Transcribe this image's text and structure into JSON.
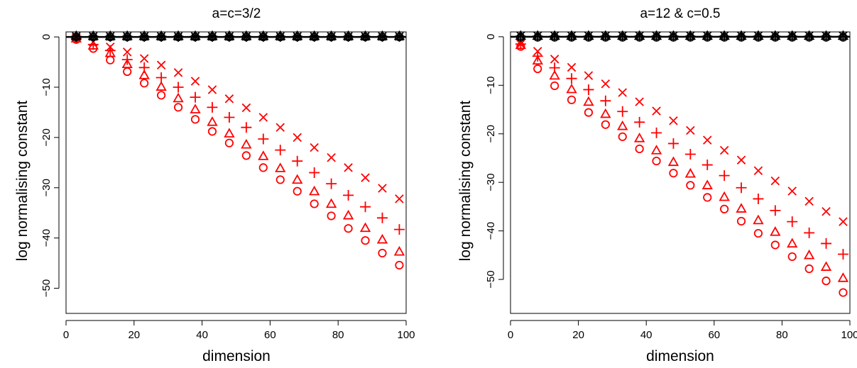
{
  "chart_data": [
    {
      "type": "scatter",
      "title": "a=c=3/2",
      "xlabel": "dimension",
      "ylabel": "log normalising constant",
      "xlim": [
        0,
        100
      ],
      "ylim": [
        -55,
        1
      ],
      "xticks": [
        0,
        20,
        40,
        60,
        80,
        100
      ],
      "yticks": [
        0,
        -10,
        -20,
        -30,
        -40,
        -50
      ],
      "grid": false,
      "reference_line_y": 0,
      "x": [
        3,
        8,
        13,
        18,
        23,
        28,
        33,
        38,
        43,
        48,
        53,
        58,
        63,
        68,
        73,
        78,
        83,
        88,
        93,
        98
      ],
      "series": [
        {
          "marker": "x",
          "color": "#ff0000",
          "values": [
            -0.2,
            -1.0,
            -2.0,
            -3.0,
            -4.3,
            -5.6,
            -7.1,
            -8.8,
            -10.5,
            -12.3,
            -14.1,
            -16.0,
            -18.0,
            -20.0,
            -22.0,
            -24.0,
            -26.0,
            -28.0,
            -30.1,
            -32.2
          ]
        },
        {
          "marker": "+",
          "color": "#ff0000",
          "values": [
            -0.3,
            -1.5,
            -2.7,
            -4.5,
            -6.1,
            -8.1,
            -10.0,
            -12.0,
            -14.0,
            -16.0,
            -18.0,
            -20.3,
            -22.5,
            -24.7,
            -27.0,
            -29.2,
            -31.5,
            -33.8,
            -36.0,
            -38.3
          ]
        },
        {
          "marker": "triangle",
          "color": "#ff0000",
          "values": [
            -0.4,
            -1.8,
            -3.3,
            -5.5,
            -7.7,
            -10.0,
            -12.3,
            -14.5,
            -17.0,
            -19.3,
            -21.5,
            -23.8,
            -26.2,
            -28.5,
            -30.8,
            -33.3,
            -35.6,
            -38.1,
            -40.4,
            -42.8
          ]
        },
        {
          "marker": "o",
          "color": "#ff0000",
          "values": [
            -0.5,
            -2.3,
            -4.6,
            -6.9,
            -9.2,
            -11.6,
            -14.0,
            -16.4,
            -18.8,
            -21.1,
            -23.6,
            -26.0,
            -28.4,
            -30.7,
            -33.2,
            -35.6,
            -38.1,
            -40.5,
            -43.0,
            -45.4
          ]
        },
        {
          "marker": "x",
          "color": "#000000",
          "values": [
            0.1,
            0.1,
            0.1,
            0.1,
            0.1,
            0.1,
            0.1,
            0.1,
            0.1,
            0.1,
            0.1,
            0.1,
            0.1,
            0.1,
            0.1,
            0.1,
            0.1,
            0.1,
            0.1,
            0.1
          ]
        },
        {
          "marker": "+",
          "color": "#000000",
          "values": [
            0.1,
            0.1,
            0.1,
            0.1,
            0.1,
            0.1,
            0.1,
            0.1,
            0.1,
            0.1,
            0.1,
            0.1,
            0.1,
            0.1,
            0.1,
            0.1,
            0.1,
            0.1,
            0.1,
            0.1
          ]
        },
        {
          "marker": "triangle",
          "color": "#000000",
          "values": [
            0.1,
            0.1,
            0.1,
            0.1,
            0.1,
            0.1,
            0.1,
            0.1,
            0.1,
            0.1,
            0.1,
            0.1,
            0.1,
            0.1,
            0.1,
            0.1,
            0.1,
            0.1,
            0.1,
            0.1
          ]
        },
        {
          "marker": "o",
          "color": "#000000",
          "values": [
            0.0,
            0.0,
            0.0,
            0.0,
            0.0,
            0.0,
            0.0,
            0.0,
            0.0,
            0.0,
            0.0,
            0.0,
            0.0,
            0.0,
            0.0,
            0.0,
            0.0,
            0.0,
            0.0,
            0.0
          ]
        }
      ]
    },
    {
      "type": "scatter",
      "title": "a=12 & c=0.5",
      "xlabel": "dimension",
      "ylabel": "log normalising constant",
      "xlim": [
        0,
        100
      ],
      "ylim": [
        -57,
        1
      ],
      "xticks": [
        0,
        20,
        40,
        60,
        80,
        100
      ],
      "yticks": [
        0,
        -10,
        -20,
        -30,
        -40,
        -50
      ],
      "grid": false,
      "reference_line_y": 0,
      "x": [
        3,
        8,
        13,
        18,
        23,
        28,
        33,
        38,
        43,
        48,
        53,
        58,
        63,
        68,
        73,
        78,
        83,
        88,
        93,
        98
      ],
      "series": [
        {
          "marker": "x",
          "color": "#ff0000",
          "values": [
            -1.5,
            -3.0,
            -4.6,
            -6.3,
            -8.0,
            -9.7,
            -11.5,
            -13.4,
            -15.3,
            -17.3,
            -19.3,
            -21.3,
            -23.4,
            -25.4,
            -27.6,
            -29.7,
            -31.8,
            -33.9,
            -36.0,
            -38.1
          ]
        },
        {
          "marker": "+",
          "color": "#ff0000",
          "values": [
            -1.5,
            -4.0,
            -6.4,
            -8.6,
            -10.9,
            -13.2,
            -15.4,
            -17.6,
            -19.8,
            -22.0,
            -24.2,
            -26.4,
            -28.6,
            -31.1,
            -33.4,
            -35.8,
            -38.1,
            -40.4,
            -42.6,
            -44.8
          ]
        },
        {
          "marker": "triangle",
          "color": "#ff0000",
          "values": [
            -1.8,
            -5.0,
            -8.1,
            -10.9,
            -13.5,
            -16.0,
            -18.5,
            -21.0,
            -23.5,
            -25.9,
            -28.3,
            -30.7,
            -33.1,
            -35.5,
            -37.9,
            -40.3,
            -42.7,
            -45.1,
            -47.5,
            -49.8
          ]
        },
        {
          "marker": "o",
          "color": "#ff0000",
          "values": [
            -2.0,
            -6.6,
            -10.1,
            -13.0,
            -15.6,
            -18.1,
            -20.6,
            -23.1,
            -25.6,
            -28.1,
            -30.6,
            -33.1,
            -35.5,
            -38.0,
            -40.5,
            -42.9,
            -45.3,
            -47.8,
            -50.3,
            -52.7
          ]
        },
        {
          "marker": "x",
          "color": "#000000",
          "values": [
            0.2,
            0.2,
            0.2,
            0.2,
            0.2,
            0.2,
            0.2,
            0.2,
            0.2,
            0.2,
            0.2,
            0.2,
            0.2,
            0.2,
            0.2,
            0.2,
            0.2,
            0.2,
            0.2,
            0.2
          ]
        },
        {
          "marker": "+",
          "color": "#000000",
          "values": [
            0.1,
            0.1,
            0.1,
            0.1,
            0.1,
            0.1,
            0.1,
            0.1,
            0.1,
            0.1,
            0.1,
            0.1,
            0.1,
            0.1,
            0.1,
            0.1,
            0.1,
            0.1,
            0.1,
            0.1
          ]
        },
        {
          "marker": "triangle",
          "color": "#000000",
          "values": [
            0.1,
            0.1,
            0.1,
            0.1,
            0.1,
            0.1,
            0.1,
            0.1,
            0.1,
            0.1,
            0.1,
            0.1,
            0.1,
            0.1,
            0.1,
            0.1,
            0.1,
            0.1,
            0.1,
            0.1
          ]
        },
        {
          "marker": "o",
          "color": "#000000",
          "values": [
            -0.1,
            -0.1,
            -0.1,
            -0.1,
            -0.1,
            -0.1,
            -0.1,
            -0.1,
            -0.1,
            -0.1,
            -0.1,
            -0.1,
            -0.1,
            -0.1,
            -0.1,
            -0.1,
            -0.1,
            -0.1,
            -0.1,
            -0.1
          ]
        }
      ]
    }
  ]
}
